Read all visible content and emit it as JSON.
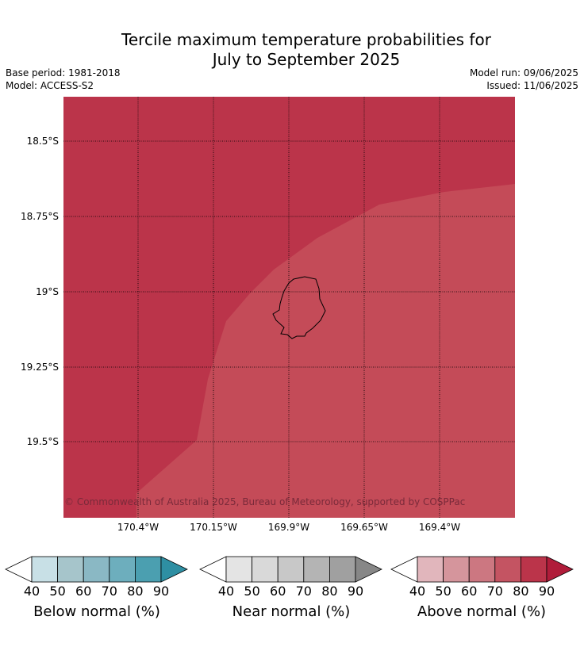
{
  "title_line1": "Tercile maximum temperature probabilities for",
  "title_line2": "July to September 2025",
  "meta": {
    "base_period": "Base period: 1981-2018",
    "model": "Model: ACCESS-S2",
    "model_run": "Model run: 09/06/2025",
    "issued": "Issued: 11/06/2025"
  },
  "map": {
    "lat_labels": [
      "18.5°S",
      "18.75°S",
      "19°S",
      "19.25°S",
      "19.5°S"
    ],
    "lon_labels": [
      "170.4°W",
      "170.15°W",
      "169.9°W",
      "169.65°W",
      "169.4°W"
    ],
    "copyright": "© Commonwealth of Australia 2025, Bureau of Meteorology, supported by COSPPac",
    "colors": {
      "above_80_90": "#bb344a",
      "above_70_80": "#c44b58",
      "coast": "#000000"
    }
  },
  "colorbars": [
    {
      "label": "Below normal (%)",
      "ticks": [
        "40",
        "50",
        "60",
        "70",
        "80",
        "90"
      ],
      "colors": [
        "#ffffff",
        "#c8e0e6",
        "#a6c5cb",
        "#8ab8c4",
        "#6daebd",
        "#4b9fb0",
        "#2e8fa3"
      ]
    },
    {
      "label": "Near normal (%)",
      "ticks": [
        "40",
        "50",
        "60",
        "70",
        "80",
        "90"
      ],
      "colors": [
        "#ffffff",
        "#e4e4e4",
        "#d9d9d9",
        "#c8c8c8",
        "#b4b4b4",
        "#a0a0a0",
        "#878787"
      ]
    },
    {
      "label": "Above normal (%)",
      "ticks": [
        "40",
        "50",
        "60",
        "70",
        "80",
        "90"
      ],
      "colors": [
        "#ffffff",
        "#e1b6bc",
        "#d5959c",
        "#cc7781",
        "#c45462",
        "#bb344a",
        "#b01c3a"
      ]
    }
  ]
}
